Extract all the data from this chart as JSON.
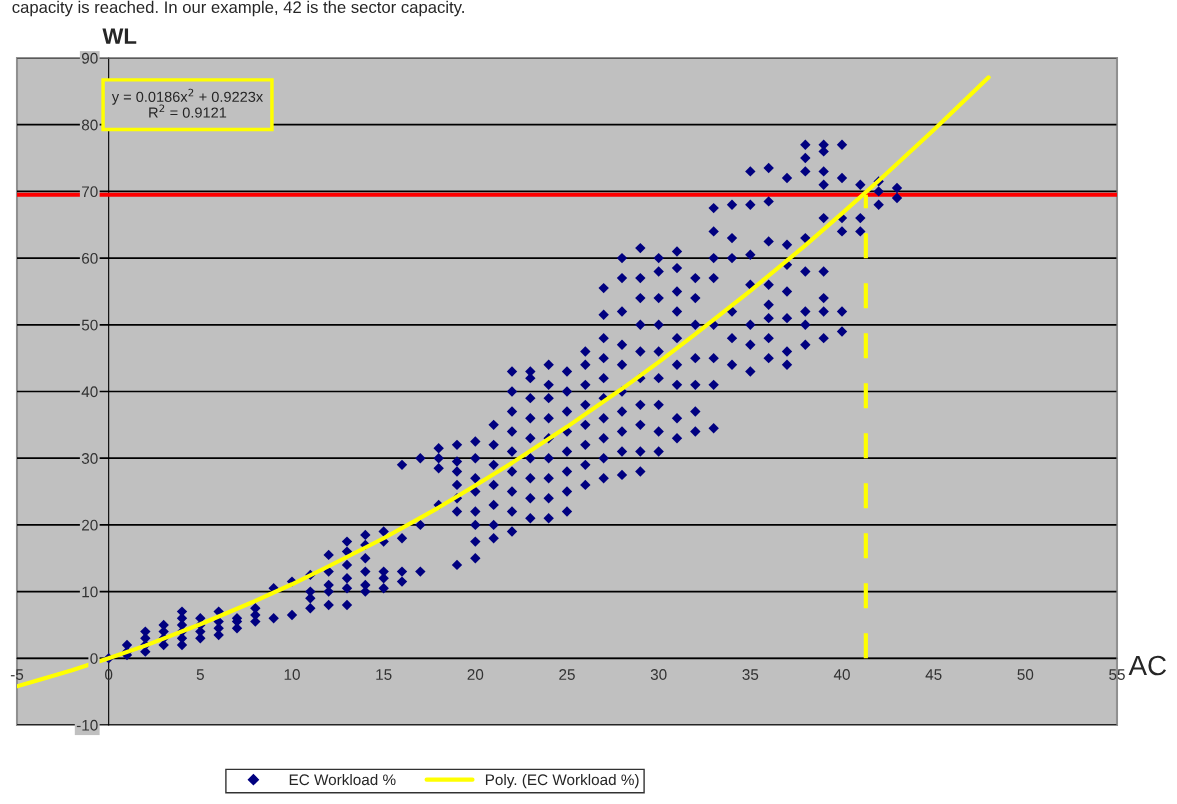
{
  "chart_data": {
    "type": "scatter",
    "xlabel": "AC",
    "ylabel": "WL",
    "xlim": [
      -5,
      55
    ],
    "xticks": [
      -5,
      0,
      5,
      10,
      15,
      20,
      25,
      30,
      35,
      40,
      45,
      50,
      55
    ],
    "ylim": [
      -10,
      90
    ],
    "yticks": [
      -10,
      0,
      10,
      20,
      30,
      40,
      50,
      60,
      70,
      80,
      90
    ],
    "grid": "y",
    "legend": "bottom",
    "marker": "diamond",
    "annotations": [
      "capacity is reached. In our example, 42 is the sector capacity.",
      "y = 0.0186x$^{2}$ + 0.9223x\nR$^{2}$ = 0.9121"
    ],
    "ref_lines": [
      {
        "axis": "y",
        "value": 69.5,
        "color": "#ff0000",
        "line_style": "solid"
      }
    ],
    "series": [
      {
        "name": "EC Workload %",
        "color": "#000080",
        "x": [
          0,
          1,
          1,
          1,
          2,
          2,
          2,
          2,
          3,
          3,
          3,
          3,
          4,
          4,
          4,
          4,
          4,
          4,
          5,
          5,
          5,
          5,
          6,
          6,
          6,
          6,
          7,
          7,
          7,
          8,
          8,
          8,
          9,
          9,
          10,
          10,
          11,
          11,
          11,
          11,
          12,
          12,
          12,
          12,
          12,
          13,
          13,
          13,
          13,
          13,
          13,
          14,
          14,
          14,
          14,
          14,
          14,
          15,
          15,
          15,
          15,
          15,
          16,
          16,
          16,
          16,
          17,
          17,
          17,
          18,
          18,
          18,
          18,
          19,
          19,
          19,
          19,
          19,
          19,
          19,
          20,
          20,
          20,
          20,
          20,
          20,
          20,
          20,
          21,
          21,
          21,
          21,
          21,
          21,
          21,
          22,
          22,
          22,
          22,
          22,
          22,
          22,
          22,
          22,
          23,
          23,
          23,
          23,
          23,
          23,
          23,
          23,
          23,
          24,
          24,
          24,
          24,
          24,
          24,
          24,
          24,
          24,
          25,
          25,
          25,
          25,
          25,
          25,
          25,
          25,
          26,
          26,
          26,
          26,
          26,
          26,
          26,
          26,
          27,
          27,
          27,
          27,
          27,
          27,
          27,
          27,
          27,
          27,
          28,
          28,
          28,
          28,
          28,
          28,
          28,
          28,
          28,
          28,
          29,
          29,
          29,
          29,
          29,
          29,
          29,
          29,
          29,
          29,
          30,
          30,
          30,
          30,
          30,
          30,
          30,
          30,
          30,
          31,
          31,
          31,
          31,
          31,
          31,
          31,
          31,
          31,
          32,
          32,
          32,
          32,
          32,
          32,
          32,
          33,
          33,
          33,
          33,
          33,
          33,
          33,
          33,
          34,
          34,
          34,
          34,
          34,
          34,
          35,
          35,
          35,
          35,
          35,
          35,
          35,
          36,
          36,
          36,
          36,
          36,
          36,
          36,
          36,
          37,
          37,
          37,
          37,
          37,
          37,
          37,
          38,
          38,
          38,
          38,
          38,
          38,
          38,
          38,
          39,
          39,
          39,
          39,
          39,
          39,
          39,
          39,
          39,
          40,
          40,
          40,
          40,
          40,
          40,
          41,
          41,
          41,
          42,
          42,
          42,
          43,
          43
        ],
        "values": [
          0,
          0.5,
          1,
          2,
          1,
          2,
          3,
          4,
          2,
          3,
          4,
          5,
          2,
          3,
          4,
          5,
          6,
          7,
          3,
          4,
          5,
          6,
          3.5,
          4.5,
          5.5,
          7,
          4.5,
          5.5,
          6,
          5.5,
          6.5,
          7.5,
          6,
          10.5,
          6.5,
          11.5,
          7.5,
          9,
          10,
          12.5,
          8,
          10,
          11,
          13,
          15.5,
          8,
          10.5,
          12,
          14,
          16,
          17.5,
          10,
          11,
          13,
          15,
          17,
          18.5,
          10.5,
          12,
          13,
          17.5,
          19,
          11.5,
          13,
          18,
          29,
          13,
          20,
          30,
          23,
          28.5,
          30,
          31.5,
          14,
          22,
          24,
          26,
          28,
          29.5,
          32,
          15,
          17.5,
          20,
          22,
          25,
          27,
          30,
          32.5,
          18,
          20,
          23,
          26,
          29,
          32,
          35,
          19,
          22,
          25,
          28,
          31,
          34,
          37,
          40,
          43,
          21,
          24,
          27,
          30,
          33,
          36,
          39,
          42,
          43,
          21,
          24,
          27,
          30,
          33,
          36,
          39,
          41,
          44,
          22,
          25,
          28,
          31,
          34,
          37,
          40,
          43,
          26,
          29,
          32,
          35,
          38,
          41,
          44,
          46,
          27,
          30,
          33,
          36,
          39,
          42,
          45,
          48,
          51.5,
          55.5,
          27.5,
          31,
          34,
          37,
          40,
          44,
          47,
          52,
          57,
          60,
          28,
          31,
          35,
          38,
          42,
          46,
          50,
          54,
          57,
          61.5,
          31,
          34,
          38,
          42,
          46,
          50,
          54,
          58,
          60,
          33,
          36,
          41,
          44,
          48,
          52,
          55,
          58.5,
          61,
          34,
          37,
          41,
          45,
          50,
          54,
          57,
          34.5,
          41,
          45,
          50,
          57,
          60,
          64,
          67.5,
          44,
          48,
          52,
          60,
          63,
          68,
          43,
          47,
          50,
          56,
          60.5,
          68,
          73,
          45,
          48,
          51,
          53,
          56,
          62.5,
          68.5,
          73.5,
          44,
          46,
          51,
          55,
          59,
          62,
          72,
          47,
          50,
          52,
          58,
          63,
          73,
          75,
          77,
          48,
          52,
          54,
          58,
          66,
          71,
          73,
          76,
          77,
          49,
          52,
          64,
          66,
          72,
          77,
          64,
          66,
          71,
          68,
          70,
          71.5,
          69,
          70.5
        ]
      },
      {
        "name": "Poly. (EC Workload %)",
        "type": "line",
        "color": "#ffff00",
        "marker": "none",
        "line_style": "solid",
        "x": [
          -5,
          -4,
          -2,
          0,
          2,
          5,
          8,
          10,
          12,
          15,
          18,
          20,
          22,
          25,
          28,
          30,
          32,
          35,
          38,
          40,
          42,
          45,
          48
        ],
        "values": [
          -4.2,
          -3.4,
          -1.8,
          0,
          1.9,
          5.1,
          8.6,
          11.1,
          13.8,
          18,
          22.6,
          25.9,
          29.3,
          34.7,
          40.4,
          44.4,
          48.6,
          55.1,
          61.9,
          66.7,
          71.6,
          79.2,
          87.1
        ]
      },
      {
        "type": "line",
        "color": "#ffff00",
        "marker": "none",
        "line_style": "dashed",
        "x": [
          41.3,
          41.3
        ],
        "values": [
          0,
          69.5
        ]
      }
    ]
  }
}
